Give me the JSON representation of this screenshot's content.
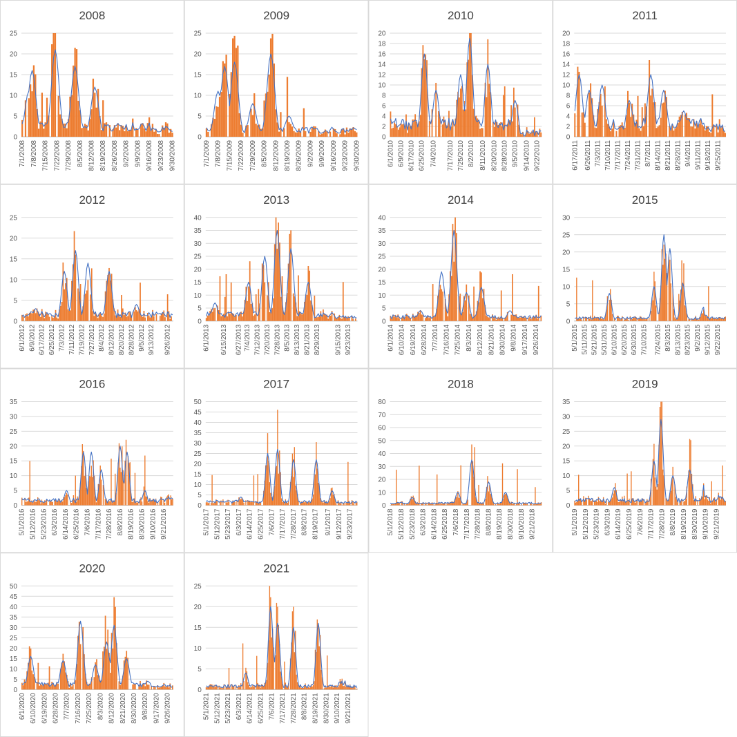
{
  "colors": {
    "bar": "#ED7D31",
    "line": "#4472C4",
    "grid": "#D9D9D9",
    "axis": "#BFBFBF",
    "text": "#595959",
    "title": "#404040",
    "border": "#D9D9D9"
  },
  "chart_data": [
    {
      "type": "bar+line",
      "title": "2008",
      "ylim": [
        0,
        25
      ],
      "yticks": [
        0,
        5,
        10,
        15,
        20,
        25
      ],
      "start": "2008-07-01",
      "end": "2008-09-30",
      "xticks": [
        "7/1/2008",
        "7/8/2008",
        "7/15/2008",
        "7/22/2008",
        "7/29/2008",
        "8/5/2008",
        "8/12/2008",
        "8/19/2008",
        "8/26/2008",
        "9/2/2008",
        "9/9/2008",
        "9/16/2008",
        "9/23/2008",
        "9/30/2008"
      ],
      "peaks": [
        {
          "d": "2008-07-05",
          "y": 11
        },
        {
          "d": "2008-07-07",
          "y": 16
        },
        {
          "d": "2008-07-21",
          "y": 21
        },
        {
          "d": "2008-08-02",
          "y": 17
        },
        {
          "d": "2008-08-14",
          "y": 12
        },
        {
          "d": "2008-08-28",
          "y": 3
        },
        {
          "d": "2008-09-20",
          "y": 3
        }
      ],
      "base": 3,
      "tail": 1
    },
    {
      "type": "bar+line",
      "title": "2009",
      "ylim": [
        0,
        25
      ],
      "yticks": [
        0,
        5,
        10,
        15,
        20,
        25
      ],
      "start": "2009-07-01",
      "end": "2009-09-30",
      "xticks": [
        "7/1/2009",
        "7/8/2009",
        "7/15/2009",
        "7/22/2009",
        "7/29/2009",
        "8/5/2009",
        "8/12/2009",
        "8/19/2009",
        "8/26/2009",
        "9/2/2009",
        "9/9/2009",
        "9/16/2009",
        "9/23/2009",
        "9/30/2009"
      ],
      "peaks": [
        {
          "d": "2009-07-08",
          "y": 11
        },
        {
          "d": "2009-07-12",
          "y": 17
        },
        {
          "d": "2009-07-18",
          "y": 18
        },
        {
          "d": "2009-07-29",
          "y": 8
        },
        {
          "d": "2009-08-09",
          "y": 20
        },
        {
          "d": "2009-08-20",
          "y": 5
        },
        {
          "d": "2009-09-05",
          "y": 2
        }
      ],
      "base": 2,
      "tail": 1
    },
    {
      "type": "bar+line",
      "title": "2010",
      "ylim": [
        0,
        20
      ],
      "yticks": [
        0,
        2,
        4,
        6,
        8,
        10,
        12,
        14,
        16,
        18,
        20
      ],
      "start": "2010-06-01",
      "end": "2010-09-25",
      "xticks": [
        "6/1/2010",
        "6/9/2010",
        "6/17/2010",
        "6/25/2010",
        "7/4/2010",
        "7/17/2010",
        "7/25/2010",
        "8/2/2010",
        "8/11/2010",
        "8/20/2010",
        "8/28/2010",
        "9/5/2010",
        "9/14/2010",
        "9/22/2010"
      ],
      "peaks": [
        {
          "d": "2010-06-27",
          "y": 16
        },
        {
          "d": "2010-07-06",
          "y": 9
        },
        {
          "d": "2010-07-25",
          "y": 12
        },
        {
          "d": "2010-08-01",
          "y": 19
        },
        {
          "d": "2010-08-15",
          "y": 14
        },
        {
          "d": "2010-09-05",
          "y": 7
        },
        {
          "d": "2010-09-20",
          "y": 6
        }
      ],
      "base": 3,
      "tail": 0
    },
    {
      "type": "bar+line",
      "title": "2011",
      "ylim": [
        0,
        20
      ],
      "yticks": [
        0,
        2,
        4,
        6,
        8,
        10,
        12,
        14,
        16,
        18,
        20
      ],
      "start": "2011-06-17",
      "end": "2011-09-30",
      "xticks": [
        "6/17/2011",
        "6/26/2011",
        "7/3/2011",
        "7/10/2011",
        "7/17/2011",
        "7/24/2011",
        "7/31/2011",
        "8/7/2011",
        "8/14/2011",
        "8/21/2011",
        "8/28/2011",
        "9/4/2011",
        "9/11/2011",
        "9/18/2011",
        "9/25/2011"
      ],
      "peaks": [
        {
          "d": "2011-06-20",
          "y": 12
        },
        {
          "d": "2011-06-27",
          "y": 9
        },
        {
          "d": "2011-07-06",
          "y": 10
        },
        {
          "d": "2011-07-25",
          "y": 7
        },
        {
          "d": "2011-08-09",
          "y": 12
        },
        {
          "d": "2011-08-18",
          "y": 9
        },
        {
          "d": "2011-09-01",
          "y": 5
        }
      ],
      "base": 3,
      "tail": 1
    },
    {
      "type": "bar+line",
      "title": "2012",
      "ylim": [
        0,
        25
      ],
      "yticks": [
        0,
        5,
        10,
        15,
        20,
        25
      ],
      "start": "2012-06-01",
      "end": "2012-09-30",
      "xticks": [
        "6/1/2012",
        "6/9/2012",
        "6/17/2012",
        "6/25/2012",
        "7/3/2012",
        "7/11/2012",
        "7/19/2012",
        "7/27/2012",
        "8/4/2012",
        "8/12/2012",
        "8/20/2012",
        "8/28/2012",
        "9/5/2012",
        "9/13/2012",
        "9/26/2012"
      ],
      "peaks": [
        {
          "d": "2012-06-12",
          "y": 3
        },
        {
          "d": "2012-07-05",
          "y": 12
        },
        {
          "d": "2012-07-14",
          "y": 17
        },
        {
          "d": "2012-07-24",
          "y": 14
        },
        {
          "d": "2012-08-10",
          "y": 12
        },
        {
          "d": "2012-09-01",
          "y": 4
        }
      ],
      "base": 2,
      "tail": 1
    },
    {
      "type": "bar+line",
      "title": "2013",
      "ylim": [
        0,
        40
      ],
      "yticks": [
        0,
        5,
        10,
        15,
        20,
        25,
        30,
        35,
        40
      ],
      "start": "2013-06-01",
      "end": "2013-09-30",
      "xticks": [
        "6/1/2013",
        "6/15/2013",
        "6/27/2013",
        "7/4/2013",
        "7/12/2013",
        "7/20/2013",
        "7/28/2013",
        "8/5/2013",
        "8/13/2013",
        "8/21/2013",
        "8/29/2013",
        "9/15/2013",
        "9/23/2013"
      ],
      "peaks": [
        {
          "d": "2013-06-08",
          "y": 7
        },
        {
          "d": "2013-07-05",
          "y": 15
        },
        {
          "d": "2013-07-18",
          "y": 25
        },
        {
          "d": "2013-07-28",
          "y": 35
        },
        {
          "d": "2013-08-08",
          "y": 28
        },
        {
          "d": "2013-08-22",
          "y": 15
        },
        {
          "d": "2013-09-10",
          "y": 3
        }
      ],
      "base": 3,
      "tail": 1
    },
    {
      "type": "bar+line",
      "title": "2014",
      "ylim": [
        0,
        40
      ],
      "yticks": [
        0,
        5,
        10,
        15,
        20,
        25,
        30,
        35,
        40
      ],
      "start": "2014-06-01",
      "end": "2014-09-30",
      "xticks": [
        "6/1/2014",
        "6/10/2014",
        "6/19/2014",
        "6/28/2014",
        "7/7/2014",
        "7/16/2014",
        "7/25/2014",
        "8/3/2014",
        "8/12/2014",
        "8/21/2014",
        "8/30/2014",
        "9/8/2014",
        "9/17/2014",
        "9/26/2014"
      ],
      "peaks": [
        {
          "d": "2014-06-25",
          "y": 4
        },
        {
          "d": "2014-07-12",
          "y": 19
        },
        {
          "d": "2014-07-22",
          "y": 35
        },
        {
          "d": "2014-08-01",
          "y": 11
        },
        {
          "d": "2014-08-13",
          "y": 13
        },
        {
          "d": "2014-09-05",
          "y": 4
        }
      ],
      "base": 2,
      "tail": 1
    },
    {
      "type": "bar+line",
      "title": "2015",
      "ylim": [
        0,
        30
      ],
      "yticks": [
        0,
        5,
        10,
        15,
        20,
        25,
        30
      ],
      "start": "2015-05-01",
      "end": "2015-09-30",
      "xticks": [
        "5/1/2015",
        "5/11/2015",
        "5/21/2015",
        "5/31/2015",
        "6/10/2015",
        "6/20/2015",
        "6/30/2015",
        "7/10/2015",
        "7/24/2015",
        "8/3/2015",
        "8/13/2015",
        "8/23/2015",
        "9/2/2015",
        "9/12/2015",
        "9/22/2015"
      ],
      "peaks": [
        {
          "d": "2015-06-05",
          "y": 8
        },
        {
          "d": "2015-07-20",
          "y": 10
        },
        {
          "d": "2015-07-30",
          "y": 25
        },
        {
          "d": "2015-08-05",
          "y": 21
        },
        {
          "d": "2015-08-18",
          "y": 11
        },
        {
          "d": "2015-09-08",
          "y": 4
        }
      ],
      "base": 1,
      "tail": 1
    },
    {
      "type": "bar+line",
      "title": "2016",
      "ylim": [
        0,
        35
      ],
      "yticks": [
        0,
        5,
        10,
        15,
        20,
        25,
        30,
        35
      ],
      "start": "2016-05-01",
      "end": "2016-09-30",
      "xticks": [
        "5/1/2016",
        "5/12/2016",
        "5/23/2016",
        "6/3/2016",
        "6/14/2016",
        "6/25/2016",
        "7/6/2016",
        "7/17/2016",
        "7/28/2016",
        "8/8/2016",
        "8/19/2016",
        "8/30/2016",
        "9/10/2016",
        "9/21/2016"
      ],
      "peaks": [
        {
          "d": "2016-06-15",
          "y": 5
        },
        {
          "d": "2016-07-02",
          "y": 18
        },
        {
          "d": "2016-07-10",
          "y": 18
        },
        {
          "d": "2016-07-20",
          "y": 12
        },
        {
          "d": "2016-08-08",
          "y": 20
        },
        {
          "d": "2016-08-15",
          "y": 18
        },
        {
          "d": "2016-09-02",
          "y": 5
        },
        {
          "d": "2016-09-26",
          "y": 6
        }
      ],
      "base": 2,
      "tail": 2
    },
    {
      "type": "bar+line",
      "title": "2017",
      "ylim": [
        0,
        50
      ],
      "yticks": [
        0,
        5,
        10,
        15,
        20,
        25,
        30,
        35,
        40,
        45,
        50
      ],
      "start": "2017-05-01",
      "end": "2017-09-30",
      "xticks": [
        "5/1/2017",
        "5/12/2017",
        "5/23/2017",
        "6/3/2017",
        "6/14/2017",
        "6/25/2017",
        "7/6/2017",
        "7/17/2017",
        "7/28/2017",
        "8/8/2017",
        "8/19/2017",
        "9/1/2017",
        "9/12/2017",
        "9/23/2017"
      ],
      "peaks": [
        {
          "d": "2017-06-05",
          "y": 4
        },
        {
          "d": "2017-07-02",
          "y": 25
        },
        {
          "d": "2017-07-12",
          "y": 27
        },
        {
          "d": "2017-07-28",
          "y": 22
        },
        {
          "d": "2017-08-20",
          "y": 22
        },
        {
          "d": "2017-09-05",
          "y": 7
        }
      ],
      "base": 2,
      "tail": 1
    },
    {
      "type": "bar+line",
      "title": "2018",
      "ylim": [
        0,
        80
      ],
      "yticks": [
        0,
        10,
        20,
        30,
        40,
        50,
        60,
        70,
        80
      ],
      "start": "2018-05-01",
      "end": "2018-09-30",
      "xticks": [
        "5/1/2018",
        "5/12/2018",
        "5/23/2018",
        "6/3/2018",
        "6/14/2018",
        "6/25/2018",
        "7/6/2018",
        "7/17/2018",
        "7/28/2018",
        "8/8/2018",
        "8/19/2018",
        "8/30/2018",
        "9/10/2018",
        "9/21/2018"
      ],
      "peaks": [
        {
          "d": "2018-05-23",
          "y": 6
        },
        {
          "d": "2018-07-08",
          "y": 10
        },
        {
          "d": "2018-07-22",
          "y": 35
        },
        {
          "d": "2018-08-08",
          "y": 18
        },
        {
          "d": "2018-08-25",
          "y": 10
        },
        {
          "d": "2018-09-15",
          "y": 4
        }
      ],
      "base": 2,
      "tail": 1
    },
    {
      "type": "bar+line",
      "title": "2019",
      "ylim": [
        0,
        35
      ],
      "yticks": [
        0,
        5,
        10,
        15,
        20,
        25,
        30,
        35
      ],
      "start": "2019-05-01",
      "end": "2019-09-30",
      "xticks": [
        "5/1/2019",
        "5/12/2019",
        "5/23/2019",
        "6/3/2019",
        "6/14/2019",
        "6/25/2019",
        "7/6/2019",
        "7/17/2019",
        "7/28/2019",
        "8/8/2019",
        "8/19/2019",
        "8/30/2019",
        "9/10/2019",
        "9/21/2019"
      ],
      "peaks": [
        {
          "d": "2019-06-10",
          "y": 6
        },
        {
          "d": "2019-07-20",
          "y": 15
        },
        {
          "d": "2019-07-27",
          "y": 29
        },
        {
          "d": "2019-08-08",
          "y": 10
        },
        {
          "d": "2019-08-25",
          "y": 12
        },
        {
          "d": "2019-09-10",
          "y": 10
        },
        {
          "d": "2019-09-25",
          "y": 5
        }
      ],
      "base": 2,
      "tail": 2
    },
    {
      "type": "bar+line",
      "title": "2020",
      "ylim": [
        0,
        50
      ],
      "yticks": [
        0,
        5,
        10,
        15,
        20,
        25,
        30,
        35,
        40,
        45,
        50
      ],
      "start": "2020-06-01",
      "end": "2020-09-30",
      "xticks": [
        "6/1/2020",
        "6/10/2020",
        "6/19/2020",
        "6/28/2020",
        "7/7/2020",
        "7/16/2020",
        "7/25/2020",
        "8/3/2020",
        "8/12/2020",
        "8/21/2020",
        "8/30/2020",
        "9/8/2020",
        "9/17/2020",
        "9/26/2020"
      ],
      "peaks": [
        {
          "d": "2020-06-08",
          "y": 16
        },
        {
          "d": "2020-07-04",
          "y": 14
        },
        {
          "d": "2020-07-18",
          "y": 33
        },
        {
          "d": "2020-07-30",
          "y": 12
        },
        {
          "d": "2020-08-08",
          "y": 23
        },
        {
          "d": "2020-08-14",
          "y": 31
        },
        {
          "d": "2020-08-24",
          "y": 15
        },
        {
          "d": "2020-09-10",
          "y": 4
        }
      ],
      "base": 3,
      "tail": 1
    },
    {
      "type": "bar+line",
      "title": "2021",
      "ylim": [
        0,
        25
      ],
      "yticks": [
        0,
        5,
        10,
        15,
        20,
        25
      ],
      "start": "2021-05-01",
      "end": "2021-09-30",
      "xticks": [
        "5/1/2021",
        "5/12/2021",
        "5/23/2021",
        "6/3/2021",
        "6/14/2021",
        "6/25/2021",
        "7/6/2021",
        "7/17/2021",
        "7/28/2021",
        "8/8/2021",
        "8/19/2021",
        "8/30/2021",
        "9/10/2021",
        "9/21/2021"
      ],
      "peaks": [
        {
          "d": "2021-06-10",
          "y": 4
        },
        {
          "d": "2021-07-05",
          "y": 20
        },
        {
          "d": "2021-07-12",
          "y": 16
        },
        {
          "d": "2021-07-28",
          "y": 15
        },
        {
          "d": "2021-08-22",
          "y": 16
        },
        {
          "d": "2021-09-15",
          "y": 5
        }
      ],
      "base": 1,
      "tail": 1
    }
  ]
}
